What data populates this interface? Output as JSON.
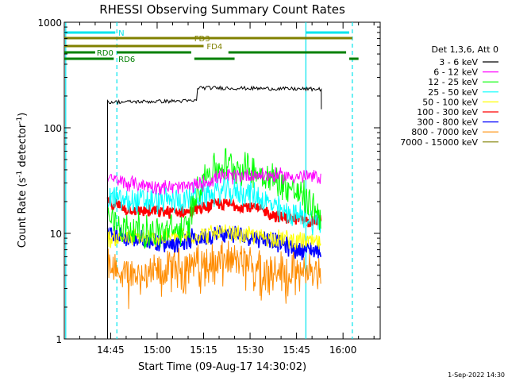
{
  "chart_data": {
    "type": "line",
    "title": "RHESSI Observing Summary Count Rates",
    "xlabel": "Start Time (09-Aug-17 14:30:02)",
    "ylabel": "Count Rate (s",
    "ylabel_sup1": "-1",
    "ylabel_mid": " detector",
    "ylabel_sup2": "-1",
    "ylabel_end": ")",
    "yscale": "log",
    "ylim": [
      1,
      1000
    ],
    "xlim": [
      "14:30:02",
      "16:12"
    ],
    "x_ticks": [
      "14:45",
      "15:00",
      "15:15",
      "15:30",
      "15:45",
      "16:00"
    ],
    "y_ticks": [
      "1",
      "10",
      "100",
      "1000"
    ],
    "timestamp": "1-Sep-2022 14:30",
    "legend_header": "Det 1,3,6, Att 0",
    "series": [
      {
        "name": "3 - 6 keV",
        "color": "#000000",
        "x": [
          "14:44",
          "15:12",
          "15:13",
          "15:52",
          "15:53"
        ],
        "values": [
          175,
          180,
          240,
          232,
          150
        ]
      },
      {
        "name": "6 - 12 keV",
        "color": "#ff00ff",
        "x": [
          "14:44",
          "14:50",
          "15:05",
          "15:12",
          "15:20",
          "15:30",
          "15:40",
          "15:53"
        ],
        "values": [
          33,
          30,
          27,
          28,
          34,
          36,
          35,
          34
        ]
      },
      {
        "name": "12 - 25 keV",
        "color": "#00ff00",
        "x": [
          "14:44",
          "14:50",
          "15:00",
          "15:10",
          "15:15",
          "15:22",
          "15:30",
          "15:40",
          "15:53"
        ],
        "values": [
          14,
          11,
          10,
          11,
          35,
          45,
          40,
          30,
          15
        ]
      },
      {
        "name": "25 - 50 keV",
        "color": "#00ffff",
        "x": [
          "14:44",
          "14:50",
          "15:00",
          "15:10",
          "15:20",
          "15:30",
          "15:40",
          "15:53"
        ],
        "values": [
          22,
          20,
          20,
          21,
          25,
          24,
          16,
          13
        ]
      },
      {
        "name": "50 - 100 keV",
        "color": "#ffff00",
        "x": [
          "14:44",
          "15:00",
          "15:20",
          "15:40",
          "15:53"
        ],
        "values": [
          9,
          9,
          10,
          9,
          8
        ]
      },
      {
        "name": "100 - 300 keV",
        "color": "#ff0000",
        "x": [
          "14:44",
          "14:50",
          "15:00",
          "15:10",
          "15:20",
          "15:30",
          "15:40",
          "15:53"
        ],
        "values": [
          20,
          17,
          16,
          16,
          19,
          18,
          14,
          13
        ]
      },
      {
        "name": "300 - 800 keV",
        "color": "#0000ff",
        "x": [
          "14:44",
          "14:50",
          "15:05",
          "15:20",
          "15:35",
          "15:45",
          "15:53"
        ],
        "values": [
          10,
          9,
          8,
          10,
          9,
          7,
          7
        ]
      },
      {
        "name": "800 - 7000 keV",
        "color": "#ff8c00",
        "x": [
          "14:44",
          "14:50",
          "15:00",
          "15:10",
          "15:20",
          "15:30",
          "15:40",
          "15:53"
        ],
        "values": [
          5,
          4.2,
          4.3,
          5.3,
          5.8,
          5.3,
          4.8,
          4.5
        ]
      },
      {
        "name": "7000 - 15000 keV",
        "color": "#808000",
        "x": [],
        "values": []
      }
    ],
    "vertical_lines": [
      {
        "x": "14:30:30",
        "style": "solid",
        "color": "#00e5ee"
      },
      {
        "x": "14:47",
        "style": "dashed",
        "color": "#00e5ee"
      },
      {
        "x": "15:48",
        "style": "solid",
        "color": "#00e5ee"
      },
      {
        "x": "16:03",
        "style": "dashed",
        "color": "#00e5ee"
      }
    ],
    "flag_bars": [
      {
        "label": "N",
        "color": "#00e5ee",
        "y_level": 1,
        "segments": [
          [
            "14:30:02",
            "14:46:30"
          ],
          [
            "15:48",
            "16:02"
          ]
        ],
        "label_x": "14:47:30"
      },
      {
        "label": "FD3",
        "color": "#808000",
        "y_level": 2,
        "segments": [
          [
            "14:30:02",
            "16:03"
          ]
        ],
        "label_x": "15:12"
      },
      {
        "label": "FD4",
        "color": "#808000",
        "y_level": 3,
        "segments": [
          [
            "14:30:02",
            "15:15"
          ]
        ],
        "label_x": "15:16"
      },
      {
        "label": "RD0",
        "color": "#008000",
        "y_level": 4,
        "segments": [
          [
            "14:30:02",
            "14:40"
          ],
          [
            "14:47",
            "15:11"
          ],
          [
            "15:23",
            "16:01"
          ]
        ],
        "label_x": "14:40:30"
      },
      {
        "label": "RD6",
        "color": "#008000",
        "y_level": 5,
        "segments": [
          [
            "14:30:02",
            "14:46"
          ],
          [
            "15:12",
            "15:25"
          ],
          [
            "16:02",
            "16:05"
          ]
        ],
        "label_x": "14:47:30"
      }
    ]
  }
}
